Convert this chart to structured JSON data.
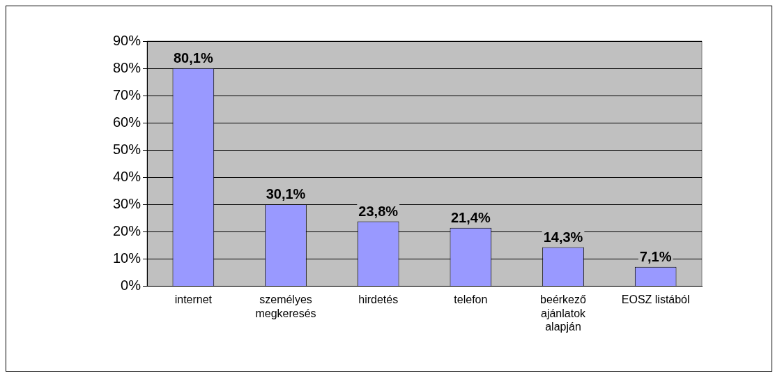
{
  "chart_data": {
    "type": "bar",
    "categories": [
      "internet",
      "személyes megkeresés",
      "hirdetés",
      "telefon",
      "beérkező ajánlatok alapján",
      "EOSZ listából"
    ],
    "values": [
      80.1,
      30.1,
      23.8,
      21.4,
      14.3,
      7.1
    ],
    "value_labels": [
      "80,1%",
      "30,1%",
      "23,8%",
      "21,4%",
      "14,3%",
      "7,1%"
    ],
    "color": "#9999ff",
    "ylim": [
      0,
      90
    ],
    "yticks": [
      {
        "value": 0,
        "label": "0%"
      },
      {
        "value": 10,
        "label": "10%"
      },
      {
        "value": 20,
        "label": "20%"
      },
      {
        "value": 30,
        "label": "30%"
      },
      {
        "value": 40,
        "label": "40%"
      },
      {
        "value": 50,
        "label": "50%"
      },
      {
        "value": 60,
        "label": "60%"
      },
      {
        "value": 70,
        "label": "70%"
      },
      {
        "value": 80,
        "label": "80%"
      },
      {
        "value": 90,
        "label": "90%"
      }
    ],
    "grid": "y",
    "legend": false
  }
}
